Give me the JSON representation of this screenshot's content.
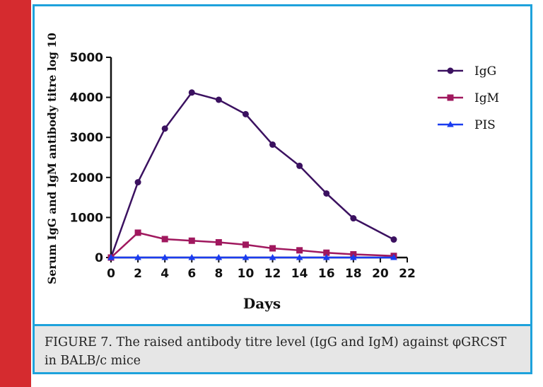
{
  "caption": "FIGURE 7. The raised antibody titre level (IgG and IgM) against φGRCST in BALB/c mice",
  "colors": {
    "side_bar": "#d52b2f",
    "frame": "#1ea2dc",
    "caption_bg": "#e6e6e6"
  },
  "chart_data": {
    "type": "line",
    "title": "",
    "xlabel": "Days",
    "ylabel": "Serum IgG and IgM antibody titre log 10",
    "xlim": [
      0,
      22
    ],
    "ylim": [
      0,
      5000
    ],
    "x_ticks": [
      0,
      2,
      4,
      6,
      8,
      10,
      12,
      14,
      16,
      18,
      20,
      22
    ],
    "y_ticks": [
      0,
      1000,
      2000,
      3000,
      4000,
      5000
    ],
    "grid": false,
    "legend_position": "top-right",
    "series": [
      {
        "name": "IgG",
        "color": "#3b1160",
        "marker": "circle",
        "x": [
          0,
          2,
          4,
          6,
          8,
          10,
          12,
          14,
          16,
          18,
          21
        ],
        "values": [
          0,
          1880,
          3220,
          4120,
          3940,
          3580,
          2820,
          2290,
          1600,
          980,
          450
        ]
      },
      {
        "name": "IgM",
        "color": "#a0185e",
        "marker": "square",
        "x": [
          0,
          2,
          4,
          6,
          8,
          10,
          12,
          14,
          16,
          18,
          21
        ],
        "values": [
          0,
          620,
          460,
          420,
          380,
          320,
          230,
          180,
          120,
          80,
          40
        ]
      },
      {
        "name": "PIS",
        "color": "#1a3cf0",
        "marker": "triangle",
        "x": [
          0,
          2,
          4,
          6,
          8,
          10,
          12,
          14,
          16,
          18,
          21
        ],
        "values": [
          0,
          0,
          0,
          0,
          0,
          0,
          0,
          0,
          0,
          0,
          0
        ]
      }
    ]
  }
}
